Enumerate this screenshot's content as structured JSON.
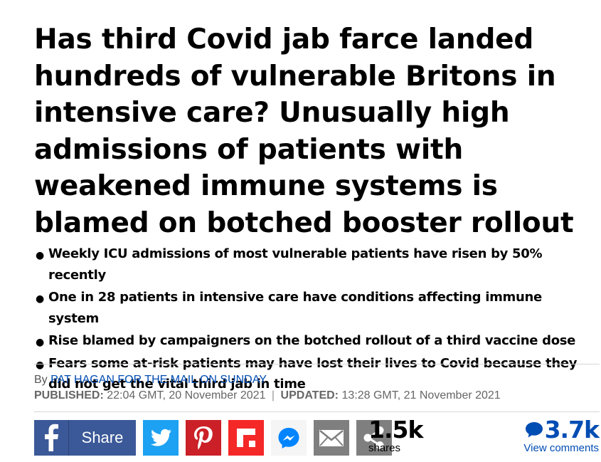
{
  "headline": "Has third Covid jab farce landed hundreds of vulnerable Britons in intensive care? Unusually high admissions of patients with weakened immune systems is blamed on botched booster rollout",
  "bullets": [
    "Weekly ICU admissions of most vulnerable patients have risen by 50% recently",
    "One in 28 patients in intensive care have conditions affecting immune system",
    "Rise blamed by campaigners on the botched rollout of a third vaccine dose",
    "Fears some at-risk patients may have lost their lives to Covid because they did not get the vital third jab in time"
  ],
  "byline": {
    "prefix": "By",
    "author": "PAT HAGAN FOR THE MAIL ON SUNDAY"
  },
  "dates": {
    "published_label": "PUBLISHED:",
    "published_value": "22:04 GMT, 20 November 2021",
    "separator": "|",
    "updated_label": "UPDATED:",
    "updated_value": "13:28 GMT, 21 November 2021"
  },
  "share": {
    "facebook_label": "Share",
    "count": "1.5k",
    "count_label": "shares",
    "icons": [
      "facebook-icon",
      "twitter-icon",
      "pinterest-icon",
      "flipboard-icon",
      "messenger-icon",
      "email-icon",
      "share-icon"
    ],
    "colors": {
      "facebook": "#3b5998",
      "twitter": "#1da1f2",
      "pinterest": "#cb2027",
      "flipboard": "#f52828",
      "messenger": "#f5f5f5",
      "email": "#7f7f7f",
      "share": "#7f7f7f"
    }
  },
  "comments": {
    "count": "3.7k",
    "label": "View comments",
    "color": "#004db3"
  }
}
